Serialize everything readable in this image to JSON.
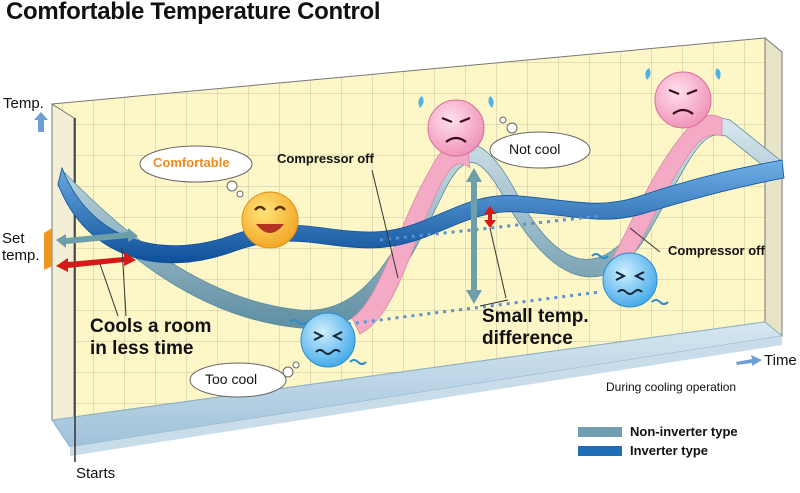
{
  "title": "Comfortable Temperature Control",
  "axes": {
    "y_label": "Temp.",
    "set_temp_line1": "Set",
    "set_temp_line2": "temp.",
    "x_label": "Time",
    "start_label": "Starts",
    "note": "During cooling operation"
  },
  "callouts": {
    "comfortable": "Comfortable",
    "not_cool": "Not cool",
    "too_cool": "Too cool",
    "compressor_off_1": "Compressor off",
    "compressor_off_2": "Compressor off",
    "cools_line1": "Cools a room",
    "cools_line2": "in less time",
    "small_diff_line1": "Small temp.",
    "small_diff_line2": "difference"
  },
  "legend": [
    {
      "label": "Non-inverter type",
      "color": "#6f9fb0"
    },
    {
      "label": "Inverter type",
      "color": "#1f6db6"
    }
  ],
  "colors": {
    "grid_bg": "#fdf7c8",
    "grid_line": "#b9b59a",
    "inverter": "#1f6db6",
    "non_inverter": "#6f9fb0",
    "compressor_off_band": "#f4a9c4",
    "arrow_red": "#d61a1a",
    "arrow_blue": "#6d9fd6",
    "set_marker": "#f0961e"
  },
  "icons": [
    "happy-face-icon",
    "cold-face-icon",
    "hot-sweating-face-icon"
  ]
}
